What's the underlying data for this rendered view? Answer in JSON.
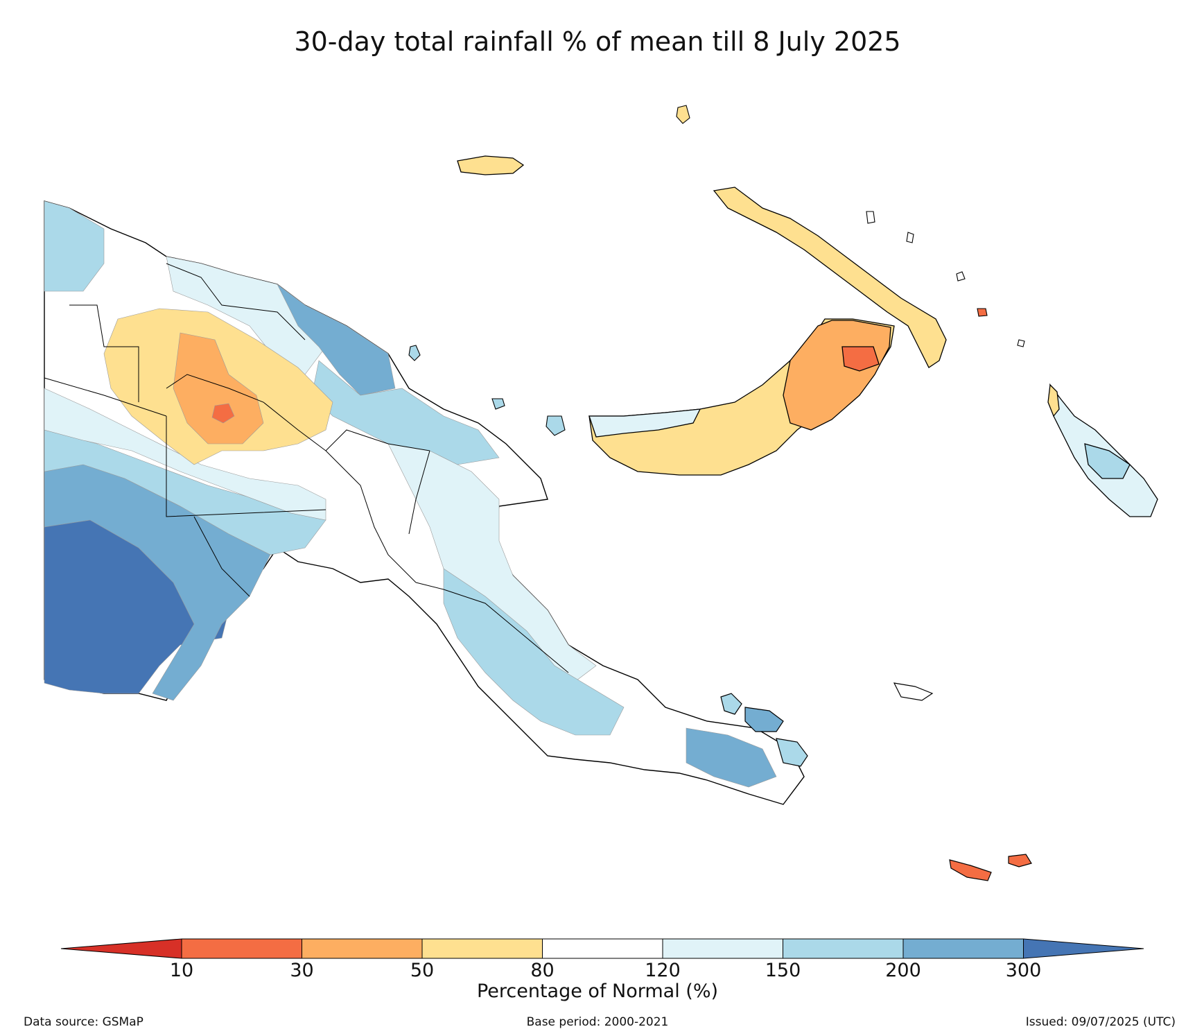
{
  "title": "30-day total rainfall % of mean till 8 July 2025",
  "colorbar": {
    "label": "Percentage of Normal (%)",
    "ticks": [
      "10",
      "30",
      "50",
      "80",
      "120",
      "150",
      "200",
      "300"
    ],
    "colors": {
      "lt10": "#d73027",
      "c10_30": "#f46d43",
      "c30_50": "#fdae61",
      "c50_80": "#fee090",
      "c80_120": "#ffffff",
      "c120_150": "#e0f3f8",
      "c150_200": "#abd9e9",
      "c200_300": "#74add1",
      "gt300": "#4575b4"
    }
  },
  "footer": {
    "source": "Data source: GSMaP",
    "base": "Base period: 2000-2021",
    "issued": "Issued: 09/07/2025 (UTC)"
  }
}
